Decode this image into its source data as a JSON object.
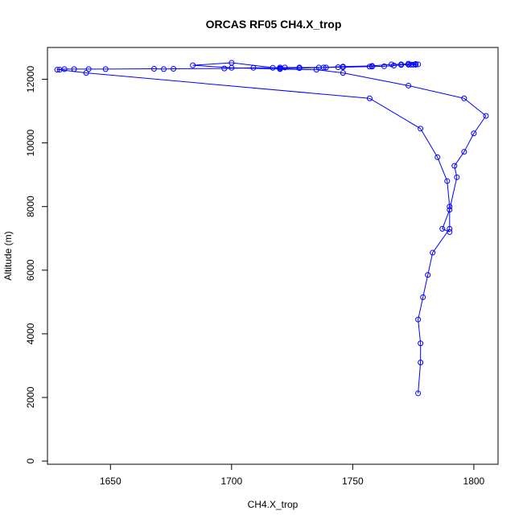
{
  "chart_data": {
    "type": "line",
    "title": "ORCAS RF05 CH4.X_trop",
    "xlabel": "CH4.X_trop",
    "ylabel": "Altitude (m)",
    "xlim": [
      1624,
      1810
    ],
    "ylim": [
      -100,
      13000
    ],
    "xticks": [
      1650,
      1700,
      1750,
      1800
    ],
    "yticks": [
      0,
      2000,
      4000,
      6000,
      8000,
      10000,
      12000
    ],
    "grid": false,
    "legend": "none",
    "series_color": "#0000ff",
    "series": [
      {
        "x": [
          1777,
          1778,
          1778,
          1777,
          1779,
          1781,
          1783,
          1790,
          1790,
          1789,
          1785,
          1778,
          1757,
          1640,
          1629,
          1628,
          1631,
          1635,
          1641,
          1648,
          1668,
          1672,
          1676,
          1697,
          1709,
          1717,
          1720,
          1722,
          1728,
          1736,
          1739,
          1744,
          1746,
          1757,
          1758,
          1763,
          1767,
          1770,
          1773,
          1774,
          1775,
          1776,
          1777,
          1776,
          1773,
          1770,
          1766,
          1758,
          1746,
          1738,
          1728,
          1720,
          1700,
          1684,
          1700,
          1720,
          1735,
          1746,
          1773,
          1796,
          1805,
          1800,
          1796,
          1792,
          1793,
          1790,
          1787,
          1790
        ],
        "y": [
          2130,
          3100,
          3700,
          4450,
          5150,
          5850,
          6550,
          7300,
          8000,
          8800,
          9550,
          10450,
          11400,
          12200,
          12300,
          12300,
          12320,
          12320,
          12320,
          12320,
          12330,
          12320,
          12330,
          12340,
          12360,
          12360,
          12370,
          12370,
          12370,
          12370,
          12370,
          12380,
          12380,
          12400,
          12400,
          12410,
          12430,
          12450,
          12460,
          12460,
          12460,
          12460,
          12470,
          12480,
          12490,
          12470,
          12470,
          12420,
          12400,
          12370,
          12350,
          12340,
          12520,
          12440,
          12360,
          12320,
          12300,
          12200,
          11800,
          11400,
          10850,
          10300,
          9720,
          9280,
          8920,
          7900,
          7300,
          7200
        ]
      }
    ]
  }
}
